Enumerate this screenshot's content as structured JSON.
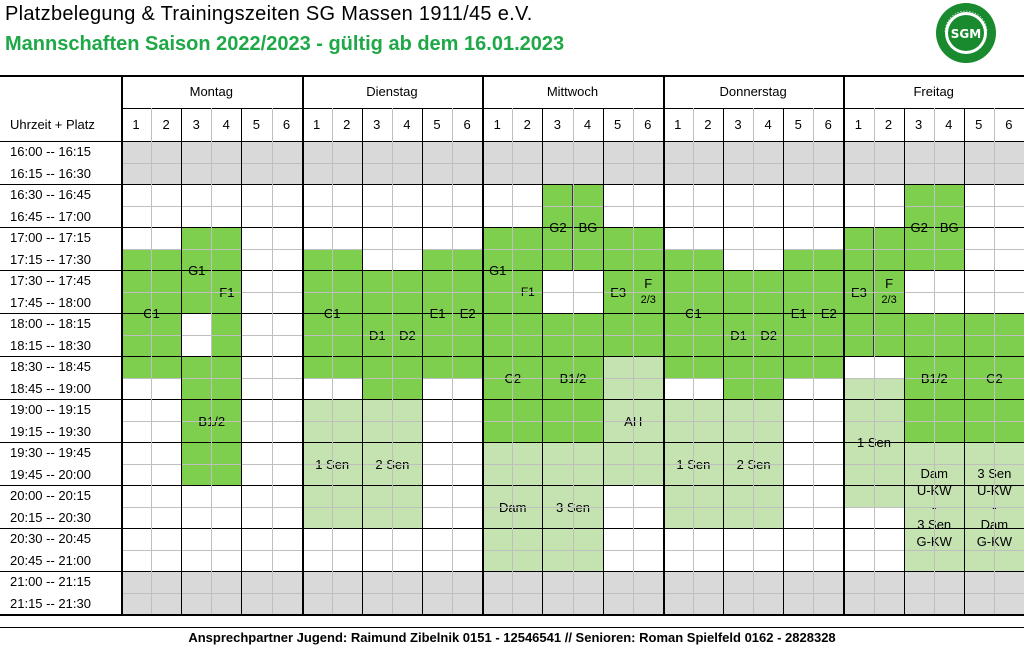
{
  "header": {
    "title": "Platzbelegung & Trainingszeiten SG Massen 1911/45 e.V.",
    "subtitle": "Mannschaften Saison 2022/2023 - gültig ab dem 16.01.2023",
    "logo_text": "SGM",
    "logo_ring_text": "SPIELGEMEINSCHAFT MASSEN 1911/45 e.V."
  },
  "colors": {
    "title_green": "#1fa847",
    "block_green": "#7ecf4e",
    "block_light_green": "#c5e3b0",
    "gray_row": "#d9d9d9"
  },
  "table": {
    "corner_label": "Uhrzeit + Platz",
    "days": [
      "Montag",
      "Dienstag",
      "Mittwoch",
      "Donnerstag",
      "Freitag"
    ],
    "columns": [
      "1",
      "2",
      "3",
      "4",
      "5",
      "6"
    ],
    "times": [
      "16:00 -- 16:15",
      "16:15 -- 16:30",
      "16:30 -- 16:45",
      "16:45 -- 17:00",
      "17:00 -- 17:15",
      "17:15 -- 17:30",
      "17:30 -- 17:45",
      "17:45 -- 18:00",
      "18:00 -- 18:15",
      "18:15 -- 18:30",
      "18:30 -- 18:45",
      "18:45 -- 19:00",
      "19:00 -- 19:15",
      "19:15 -- 19:30",
      "19:30 -- 19:45",
      "19:45 -- 20:00",
      "20:00 -- 20:15",
      "20:15 -- 20:30",
      "20:30 -- 20:45",
      "20:45 -- 21:00",
      "21:00 -- 21:15",
      "21:15 -- 21:30"
    ]
  },
  "blocks": [
    {
      "day": 0,
      "col": 0,
      "span": 2,
      "row": 5,
      "rows": 6,
      "color": "g",
      "label": "C1"
    },
    {
      "day": 0,
      "col": 2,
      "span": 1,
      "row": 4,
      "rows": 4,
      "color": "g",
      "label": "G1"
    },
    {
      "day": 0,
      "col": 3,
      "span": 1,
      "row": 4,
      "rows": 6,
      "color": "g",
      "label": "F1"
    },
    {
      "day": 0,
      "col": 2,
      "span": 2,
      "row": 10,
      "rows": 6,
      "color": "g",
      "label": "B1/2"
    },
    {
      "day": 1,
      "col": 0,
      "span": 2,
      "row": 5,
      "rows": 6,
      "color": "g",
      "label": "C1"
    },
    {
      "day": 1,
      "col": 2,
      "span": 1,
      "row": 6,
      "rows": 6,
      "color": "g",
      "label": "D1"
    },
    {
      "day": 1,
      "col": 3,
      "span": 1,
      "row": 6,
      "rows": 6,
      "color": "g",
      "label": "D2"
    },
    {
      "day": 1,
      "col": 4,
      "span": 1,
      "row": 5,
      "rows": 6,
      "color": "g",
      "label": "E1"
    },
    {
      "day": 1,
      "col": 5,
      "span": 1,
      "row": 5,
      "rows": 6,
      "color": "g",
      "label": "E2"
    },
    {
      "day": 1,
      "col": 0,
      "span": 2,
      "row": 12,
      "rows": 6,
      "color": "lg",
      "label": "1 Sen"
    },
    {
      "day": 1,
      "col": 2,
      "span": 2,
      "row": 12,
      "rows": 6,
      "color": "lg",
      "label": "2 Sen"
    },
    {
      "day": 2,
      "col": 0,
      "span": 1,
      "row": 4,
      "rows": 4,
      "color": "g",
      "label": "G1"
    },
    {
      "day": 2,
      "col": 1,
      "span": 1,
      "row": 4,
      "rows": 6,
      "color": "g",
      "label": "F1",
      "small": true
    },
    {
      "day": 2,
      "col": 0,
      "span": 2,
      "row": 8,
      "rows": 6,
      "color": "g",
      "label": "C2"
    },
    {
      "day": 2,
      "col": 2,
      "span": 1,
      "row": 2,
      "rows": 4,
      "color": "g",
      "label": "G2"
    },
    {
      "day": 2,
      "col": 3,
      "span": 1,
      "row": 2,
      "rows": 4,
      "color": "g",
      "label": "BG"
    },
    {
      "day": 2,
      "col": 2,
      "span": 2,
      "row": 8,
      "rows": 6,
      "color": "g",
      "label": "B1/2"
    },
    {
      "day": 2,
      "col": 4,
      "span": 1,
      "row": 4,
      "rows": 6,
      "color": "g",
      "label": "E3"
    },
    {
      "day": 2,
      "col": 5,
      "span": 1,
      "row": 4,
      "rows": 6,
      "color": "g",
      "label": "F",
      "sublabel": "2/3"
    },
    {
      "day": 2,
      "col": 4,
      "span": 2,
      "row": 10,
      "rows": 6,
      "color": "lg",
      "label": "AH"
    },
    {
      "day": 2,
      "col": 0,
      "span": 2,
      "row": 14,
      "rows": 6,
      "color": "lg",
      "label": "Dam"
    },
    {
      "day": 2,
      "col": 2,
      "span": 2,
      "row": 14,
      "rows": 6,
      "color": "lg",
      "label": "3 Sen"
    },
    {
      "day": 3,
      "col": 0,
      "span": 2,
      "row": 5,
      "rows": 6,
      "color": "g",
      "label": "C1"
    },
    {
      "day": 3,
      "col": 2,
      "span": 1,
      "row": 6,
      "rows": 6,
      "color": "g",
      "label": "D1"
    },
    {
      "day": 3,
      "col": 3,
      "span": 1,
      "row": 6,
      "rows": 6,
      "color": "g",
      "label": "D2"
    },
    {
      "day": 3,
      "col": 4,
      "span": 1,
      "row": 5,
      "rows": 6,
      "color": "g",
      "label": "E1"
    },
    {
      "day": 3,
      "col": 5,
      "span": 1,
      "row": 5,
      "rows": 6,
      "color": "g",
      "label": "E2"
    },
    {
      "day": 3,
      "col": 0,
      "span": 2,
      "row": 12,
      "rows": 6,
      "color": "lg",
      "label": "1 Sen"
    },
    {
      "day": 3,
      "col": 2,
      "span": 2,
      "row": 12,
      "rows": 6,
      "color": "lg",
      "label": "2 Sen"
    },
    {
      "day": 4,
      "col": 0,
      "span": 1,
      "row": 4,
      "rows": 6,
      "color": "g",
      "label": "E3"
    },
    {
      "day": 4,
      "col": 1,
      "span": 1,
      "row": 4,
      "rows": 6,
      "color": "g",
      "label": "F",
      "sublabel": "2/3"
    },
    {
      "day": 4,
      "col": 0,
      "span": 2,
      "row": 11,
      "rows": 6,
      "color": "lg",
      "label": "1 Sen"
    },
    {
      "day": 4,
      "col": 2,
      "span": 1,
      "row": 2,
      "rows": 4,
      "color": "g",
      "label": "G2"
    },
    {
      "day": 4,
      "col": 3,
      "span": 1,
      "row": 2,
      "rows": 4,
      "color": "g",
      "label": "BG"
    },
    {
      "day": 4,
      "col": 2,
      "span": 2,
      "row": 8,
      "rows": 6,
      "color": "g",
      "label": "B1/2"
    },
    {
      "day": 4,
      "col": 4,
      "span": 2,
      "row": 8,
      "rows": 6,
      "color": "g",
      "label": "C2"
    },
    {
      "day": 4,
      "col": 2,
      "span": 2,
      "row": 14,
      "rows": 6,
      "color": "lg",
      "lines": [
        "Dam",
        "U-KW",
        "-",
        "3 Sen",
        "G-KW"
      ]
    },
    {
      "day": 4,
      "col": 4,
      "span": 2,
      "row": 14,
      "rows": 6,
      "color": "lg",
      "lines": [
        "3 Sen",
        "U-KW",
        "-",
        "Dam",
        "G-KW"
      ]
    }
  ],
  "footer": "Ansprechpartner Jugend: Raimund Zibelnik  0151 - 12546541 // Senioren: Roman Spielfeld 0162 - 2828328"
}
